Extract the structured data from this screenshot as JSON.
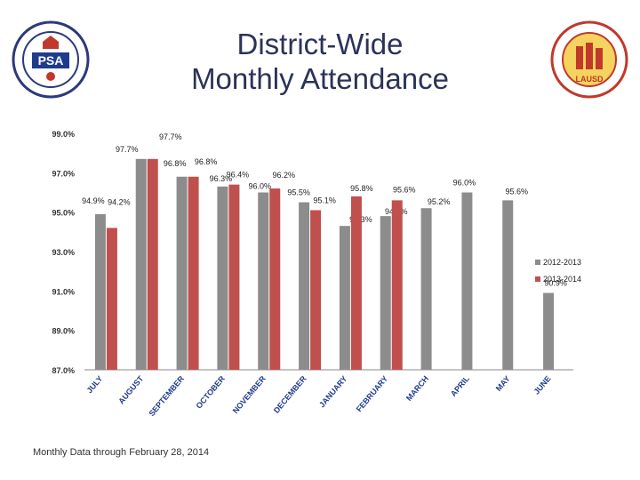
{
  "header": {
    "title_line1": "District-Wide",
    "title_line2": "Monthly Attendance",
    "left_logo_text": "PSA",
    "right_logo_text": "LAUSD"
  },
  "footer": {
    "note": "Monthly Data through February 28, 2014"
  },
  "chart_data": {
    "type": "bar",
    "title": "District-Wide Monthly Attendance",
    "xlabel": "",
    "ylabel": "",
    "ylim": [
      87.0,
      99.0
    ],
    "y_ticks": [
      "87.0%",
      "89.0%",
      "91.0%",
      "93.0%",
      "95.0%",
      "97.0%",
      "99.0%"
    ],
    "y_tick_values": [
      87,
      89,
      91,
      93,
      95,
      97,
      99
    ],
    "categories": [
      "JULY",
      "AUGUST",
      "SEPTEMBER",
      "OCTOBER",
      "NOVEMBER",
      "DECEMBER",
      "JANUARY",
      "FEBRUARY",
      "MARCH",
      "APRIL",
      "MAY",
      "JUNE"
    ],
    "legend_position": "right",
    "series": [
      {
        "name": "2012-2013",
        "color": "#8c8c8c",
        "values": [
          94.9,
          97.7,
          96.8,
          96.3,
          96.0,
          95.5,
          94.3,
          94.8,
          95.2,
          96.0,
          95.6,
          90.9
        ],
        "labels": [
          "94.9%",
          "97.7%",
          "96.8%",
          "96.3%",
          "96.0%",
          "95.5%",
          "94.3%",
          "94.8%",
          "95.2%",
          "96.0%",
          "95.6%",
          "90.9%"
        ]
      },
      {
        "name": "2013-2014",
        "color": "#c0504d",
        "values": [
          94.2,
          97.7,
          96.8,
          96.4,
          96.2,
          95.1,
          95.8,
          95.6,
          null,
          null,
          null,
          null
        ],
        "labels": [
          "94.2%",
          "97.7%",
          "96.8%",
          "96.4%",
          "96.2%",
          "95.1%",
          "95.8%",
          "95.6%",
          null,
          null,
          null,
          null
        ]
      }
    ]
  }
}
